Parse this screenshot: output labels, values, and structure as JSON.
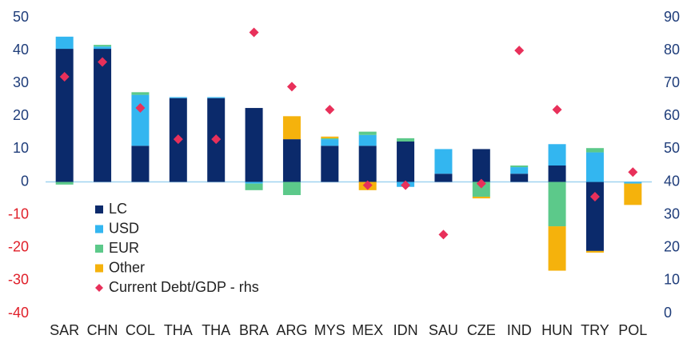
{
  "chart_data": {
    "type": "bar",
    "stacked": true,
    "categories": [
      "SAR",
      "CHN",
      "COL",
      "THA",
      "THA",
      "BRA",
      "ARG",
      "MYS",
      "MEX",
      "IDN",
      "SAU",
      "CZE",
      "IND",
      "HUN",
      "TRY",
      "POL"
    ],
    "series": [
      {
        "name": "LC",
        "color": "#0b2a6b",
        "values": [
          40.5,
          40.5,
          11,
          25.5,
          25.5,
          22.5,
          13,
          11,
          11,
          12.3,
          2.5,
          10,
          2.5,
          5,
          -21,
          0
        ]
      },
      {
        "name": "USD",
        "color": "#33b6f0",
        "values": [
          3.7,
          0.7,
          15.5,
          0.3,
          0.3,
          -0.5,
          0,
          2,
          3.3,
          -1.5,
          7.5,
          0,
          2,
          6.5,
          9,
          -0.5
        ]
      },
      {
        "name": "EUR",
        "color": "#5cc98a",
        "values": [
          -0.8,
          0.5,
          0.8,
          0,
          0,
          -2,
          -4,
          0.3,
          1,
          1,
          0,
          -4.5,
          0.5,
          -13.5,
          1.3,
          0
        ]
      },
      {
        "name": "Other",
        "color": "#f5b20c",
        "values": [
          0,
          0,
          0,
          0,
          0,
          0,
          7,
          0.5,
          -2.5,
          0,
          0,
          -0.5,
          0,
          -13.5,
          -0.5,
          -6.5
        ]
      },
      {
        "name": "Current Debt/GDP - rhs",
        "type": "scatter",
        "axis": "y2",
        "color": "#e8305a",
        "values": [
          72,
          76.5,
          62.5,
          53,
          53,
          85.5,
          69,
          62,
          39,
          39,
          24,
          39.5,
          80,
          62,
          35.5,
          43
        ]
      }
    ],
    "ylim": [
      -40,
      50
    ],
    "yticks": [
      -40,
      -30,
      -20,
      -10,
      0,
      10,
      20,
      30,
      40,
      50
    ],
    "y2lim": [
      0,
      90
    ],
    "y2ticks": [
      0,
      10,
      20,
      30,
      40,
      50,
      60,
      70,
      80,
      90
    ],
    "grid": false,
    "legend": "lower left"
  }
}
